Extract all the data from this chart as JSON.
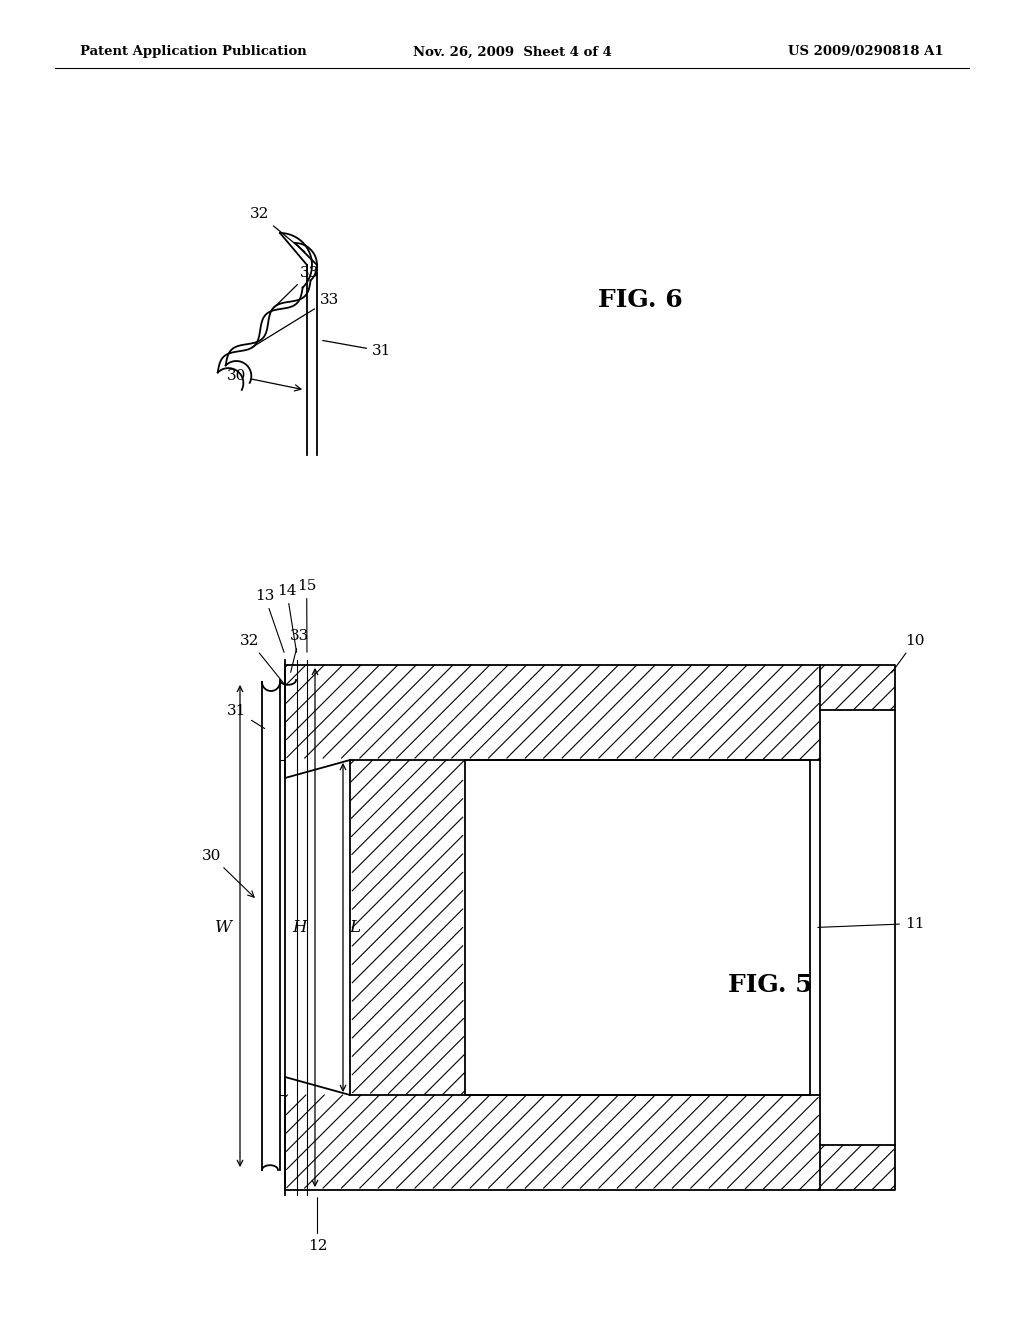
{
  "bg_color": "#ffffff",
  "line_color": "#000000",
  "header_left": "Patent Application Publication",
  "header_mid": "Nov. 26, 2009  Sheet 4 of 4",
  "header_right": "US 2009/0290818 A1",
  "fig6_label": "FIG. 6",
  "fig5_label": "FIG. 5"
}
